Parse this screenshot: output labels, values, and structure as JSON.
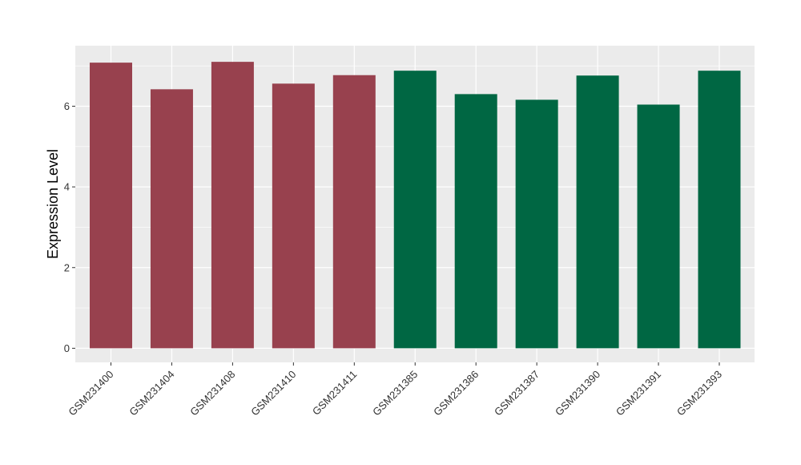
{
  "chart_data": {
    "type": "bar",
    "title": "",
    "xlabel": "",
    "ylabel": "Expression Level",
    "ylim": [
      -0.35,
      7.5
    ],
    "yticks": [
      0,
      2,
      4,
      6
    ],
    "grid": true,
    "legend": "none",
    "panel_background": "#EBEBEB",
    "categories": [
      "GSM231400",
      "GSM231404",
      "GSM231408",
      "GSM231410",
      "GSM231411",
      "GSM231385",
      "GSM231386",
      "GSM231387",
      "GSM231390",
      "GSM231391",
      "GSM231393"
    ],
    "values": [
      7.08,
      6.42,
      7.1,
      6.56,
      6.77,
      6.88,
      6.3,
      6.16,
      6.76,
      6.04,
      6.88
    ],
    "groups": [
      "a",
      "a",
      "a",
      "a",
      "a",
      "b",
      "b",
      "b",
      "b",
      "b",
      "b"
    ],
    "group_colors": {
      "a": "#98414E",
      "b": "#006743"
    }
  }
}
